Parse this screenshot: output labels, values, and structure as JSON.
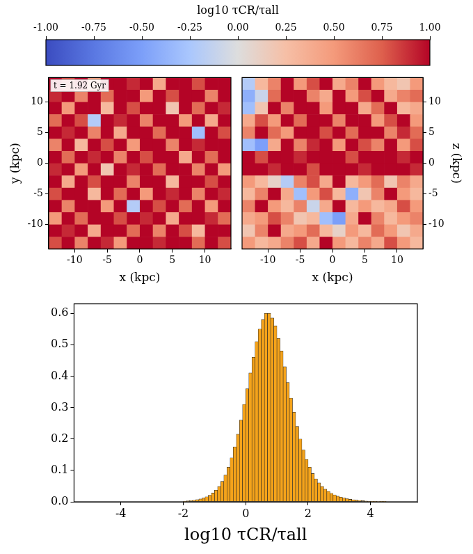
{
  "chart_data": [
    {
      "type": "heatmap",
      "annotation": "t = 1.92 Gyr",
      "x_label": "x (kpc)",
      "y_label": "y (kpc)",
      "xlim": [
        -14,
        14
      ],
      "ylim": [
        -14,
        14
      ],
      "xticks": [
        -10,
        -5,
        0,
        5,
        10
      ],
      "yticks": [
        -10,
        -5,
        0,
        5,
        10
      ],
      "grid": false,
      "colorbar": {
        "label": "log10 τCR/τall",
        "lim": [
          -1,
          1
        ],
        "ticks": [
          {
            "value": -1,
            "label": "-1.00"
          },
          {
            "value": -0.75,
            "label": "-0.75"
          },
          {
            "value": -0.5,
            "label": "-0.50"
          },
          {
            "value": -0.25,
            "label": "-0.25"
          },
          {
            "value": 0,
            "label": "0.00"
          },
          {
            "value": 0.25,
            "label": "0.25"
          },
          {
            "value": 0.5,
            "label": "0.50"
          },
          {
            "value": 0.75,
            "label": "0.75"
          },
          {
            "value": 1,
            "label": "1.00"
          }
        ]
      },
      "cells": [
        [
          1,
          0.8,
          1,
          0.5,
          1,
          1,
          0.9,
          1,
          0.4,
          1,
          1,
          0.8,
          1,
          1
        ],
        [
          0.9,
          1,
          0.6,
          1,
          0.7,
          1,
          1,
          0.5,
          1,
          0.8,
          1,
          1,
          0.6,
          1
        ],
        [
          1,
          0.5,
          1,
          1,
          0.3,
          1,
          0.8,
          1,
          1,
          0.2,
          1,
          0.7,
          1,
          0.9
        ],
        [
          0.7,
          1,
          0.8,
          -0.2,
          1,
          0.9,
          1,
          0.6,
          1,
          1,
          0.5,
          1,
          0.4,
          1
        ],
        [
          1,
          0.9,
          1,
          0.6,
          1,
          0.4,
          1,
          1,
          0.7,
          1,
          1,
          -0.3,
          1,
          0.8
        ],
        [
          0.6,
          1,
          0.3,
          1,
          0.8,
          1,
          0.5,
          1,
          1,
          0.6,
          1,
          0.9,
          1,
          1
        ],
        [
          1,
          0.7,
          1,
          0.9,
          1,
          0.6,
          1,
          0.8,
          1,
          1,
          0.4,
          1,
          0.7,
          1
        ],
        [
          0.9,
          1,
          0.5,
          1,
          0.2,
          1,
          0.9,
          1,
          0.7,
          1,
          1,
          0.6,
          1,
          0.5
        ],
        [
          1,
          0.4,
          1,
          0.8,
          1,
          1,
          0.6,
          1,
          1,
          0.3,
          1,
          1,
          0.8,
          1
        ],
        [
          0.8,
          1,
          1,
          0.3,
          1,
          0.7,
          1,
          0.5,
          1,
          0.9,
          1,
          0.6,
          1,
          0.9
        ],
        [
          1,
          0.6,
          1,
          1,
          0.5,
          1,
          -0.2,
          1,
          0.8,
          1,
          0.7,
          1,
          0.5,
          1
        ],
        [
          0.5,
          1,
          0.7,
          1,
          1,
          0.8,
          1,
          0.9,
          1,
          0.4,
          1,
          1,
          0.9,
          0.7
        ],
        [
          1,
          0.9,
          1,
          0.4,
          1,
          1,
          0.7,
          1,
          0.6,
          1,
          0.8,
          0.3,
          1,
          1
        ],
        [
          0.8,
          1,
          0.6,
          1,
          0.9,
          0.5,
          1,
          1,
          0.9,
          1,
          1,
          0.7,
          1,
          0.8
        ]
      ]
    },
    {
      "type": "heatmap",
      "x_label": "x (kpc)",
      "y_label": "z (kpc)",
      "xlim": [
        -14,
        14
      ],
      "ylim": [
        -14,
        14
      ],
      "xticks": [
        -10,
        -5,
        0,
        5,
        10
      ],
      "yticks": [
        -10,
        -5,
        0,
        5,
        10
      ],
      "grid": false,
      "colorbar": {
        "label": "log10 τCR/τall",
        "lim": [
          -1,
          1
        ],
        "ticks": [
          {
            "value": -1,
            "label": "-1.00"
          },
          {
            "value": -0.75,
            "label": "-0.75"
          },
          {
            "value": -0.5,
            "label": "-0.50"
          },
          {
            "value": -0.25,
            "label": "-0.25"
          },
          {
            "value": 0,
            "label": "0.00"
          },
          {
            "value": 0.25,
            "label": "0.25"
          },
          {
            "value": 0.5,
            "label": "0.50"
          },
          {
            "value": 0.75,
            "label": "0.75"
          },
          {
            "value": 1,
            "label": "1.00"
          }
        ]
      },
      "cells": [
        [
          -0.2,
          0.3,
          0.6,
          1,
          0.5,
          0.8,
          1,
          0.4,
          0.6,
          1,
          0.5,
          0.3,
          0.2,
          0.5
        ],
        [
          -0.4,
          -0.1,
          0.7,
          1,
          1,
          0.6,
          0.4,
          1,
          0.5,
          0.8,
          1,
          0.4,
          0.6,
          0.7
        ],
        [
          -0.3,
          0.2,
          1,
          0.6,
          1,
          1,
          0.5,
          1,
          1,
          0.4,
          0.7,
          1,
          0.3,
          0.4
        ],
        [
          0.4,
          0.8,
          0.5,
          1,
          0.7,
          1,
          1,
          0.6,
          1,
          1,
          0.5,
          0.8,
          1,
          0.5
        ],
        [
          0.6,
          1,
          0.7,
          0.5,
          1,
          1,
          0.8,
          1,
          0.7,
          1,
          1,
          0.6,
          0.9,
          0.7
        ],
        [
          -0.3,
          -0.5,
          0.4,
          1,
          0.6,
          0.9,
          1,
          0.5,
          1,
          0.8,
          0.6,
          1,
          0.5,
          0.8
        ],
        [
          1,
          0.8,
          1,
          1,
          0.9,
          1,
          1,
          1,
          0.8,
          1,
          1,
          1,
          0.9,
          1
        ],
        [
          1,
          1,
          0.9,
          1,
          1,
          0.8,
          1,
          1,
          1,
          0.9,
          1,
          1,
          1,
          0.9
        ],
        [
          0.5,
          0.3,
          0.1,
          -0.2,
          0.6,
          0.8,
          0.4,
          1,
          0.3,
          0.5,
          0.7,
          0.2,
          0.6,
          0.4
        ],
        [
          0.3,
          0.6,
          1,
          0.4,
          -0.3,
          0.5,
          0.8,
          0.3,
          -0.4,
          0.2,
          0.6,
          1,
          0.5,
          0.3
        ],
        [
          0.6,
          1,
          0.5,
          0.3,
          0.6,
          -0.1,
          0.4,
          1,
          0.3,
          0.5,
          0.3,
          0.4,
          0.8,
          0.5
        ],
        [
          0.4,
          0.5,
          0.8,
          0.6,
          0.2,
          0.3,
          -0.3,
          -0.5,
          0.4,
          1,
          0.6,
          0.3,
          0.5,
          0.6
        ],
        [
          0.2,
          0.6,
          1,
          0.4,
          0.5,
          0.7,
          0.3,
          0.1,
          0.5,
          0.3,
          0.7,
          0.5,
          0.2,
          0.4
        ],
        [
          0.5,
          0.3,
          0.4,
          0.6,
          0.8,
          0.4,
          1,
          0.5,
          0.3,
          0.6,
          0.4,
          0.8,
          0.5,
          0.3
        ]
      ]
    },
    {
      "type": "histogram",
      "x_label": "log10 τCR/τall",
      "color": "#f5a31a",
      "grid": false,
      "xlim": [
        -5.5,
        5.5
      ],
      "ylim": [
        0,
        0.63
      ],
      "xticks": [
        -4,
        -2,
        0,
        2,
        4
      ],
      "yticks": [
        {
          "value": 0,
          "label": "0.0"
        },
        {
          "value": 0.1,
          "label": "0.1"
        },
        {
          "value": 0.2,
          "label": "0.2"
        },
        {
          "value": 0.3,
          "label": "0.3"
        },
        {
          "value": 0.4,
          "label": "0.4"
        },
        {
          "value": 0.5,
          "label": "0.5"
        },
        {
          "value": 0.6,
          "label": "0.6"
        }
      ],
      "bins": [
        -2.0,
        -1.9,
        -1.8,
        -1.7,
        -1.6,
        -1.5,
        -1.4,
        -1.3,
        -1.2,
        -1.1,
        -1.0,
        -0.9,
        -0.8,
        -0.7,
        -0.6,
        -0.5,
        -0.4,
        -0.3,
        -0.2,
        -0.1,
        0.0,
        0.1,
        0.2,
        0.3,
        0.4,
        0.5,
        0.6,
        0.7,
        0.8,
        0.9,
        1.0,
        1.1,
        1.2,
        1.3,
        1.4,
        1.5,
        1.6,
        1.7,
        1.8,
        1.9,
        2.0,
        2.1,
        2.2,
        2.3,
        2.4,
        2.5,
        2.6,
        2.7,
        2.8,
        2.9,
        3.0,
        3.1,
        3.2,
        3.3,
        3.4,
        3.5,
        3.6,
        3.7,
        3.8,
        3.9,
        4.0,
        4.1,
        4.2,
        4.3,
        4.4,
        4.5
      ],
      "values": [
        0.002,
        0.003,
        0.004,
        0.005,
        0.007,
        0.009,
        0.012,
        0.016,
        0.021,
        0.028,
        0.037,
        0.049,
        0.065,
        0.085,
        0.11,
        0.14,
        0.175,
        0.215,
        0.26,
        0.31,
        0.36,
        0.41,
        0.46,
        0.51,
        0.55,
        0.58,
        0.6,
        0.6,
        0.585,
        0.56,
        0.52,
        0.48,
        0.43,
        0.38,
        0.33,
        0.285,
        0.24,
        0.2,
        0.165,
        0.135,
        0.11,
        0.09,
        0.073,
        0.06,
        0.049,
        0.04,
        0.033,
        0.027,
        0.022,
        0.018,
        0.015,
        0.012,
        0.01,
        0.008,
        0.0065,
        0.0053,
        0.0043,
        0.0035,
        0.0028,
        0.0022,
        0.0018,
        0.0014,
        0.0011,
        0.0009,
        0.0007
      ]
    }
  ]
}
